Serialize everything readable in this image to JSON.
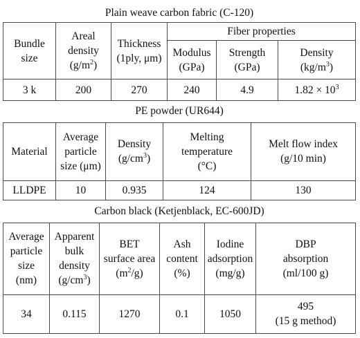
{
  "fabric": {
    "title": "Plain weave carbon fabric (C-120)",
    "headers": {
      "bundle": [
        "Bundle",
        "size"
      ],
      "areal": [
        "Areal",
        "density",
        "(g/m",
        "2",
        ")"
      ],
      "thickness": [
        "Thickness",
        "(1ply, μm)"
      ],
      "fiber_group": "Fiber properties",
      "modulus": [
        "Modulus",
        "(GPa)"
      ],
      "strength": [
        "Strength",
        "(GPa)"
      ],
      "density": [
        "Density",
        "(kg/m",
        "3",
        ")"
      ]
    },
    "row": {
      "bundle": "3 k",
      "areal": "200",
      "thickness": "270",
      "modulus": "240",
      "strength": "4.9",
      "density": "1.82 × 10",
      "density_exp": "3"
    }
  },
  "powder": {
    "title": "PE powder (UR644)",
    "headers": {
      "material": "Material",
      "particle": [
        "Average",
        "particle",
        "size (μm)"
      ],
      "density": [
        "Density",
        "(g/cm",
        "3",
        ")"
      ],
      "melting": [
        "Melting",
        "temperature",
        "(°C)"
      ],
      "mfi": [
        "Melt flow index",
        "(g/10 min)"
      ]
    },
    "row": {
      "material": "LLDPE",
      "particle": "10",
      "density": "0.935",
      "melting": "124",
      "mfi": "130"
    }
  },
  "carbon": {
    "title": "Carbon black (Ketjenblack, EC-600JD)",
    "headers": {
      "particle": [
        "Average",
        "particle",
        "size",
        "(nm)"
      ],
      "bulk": [
        "Apparent",
        "bulk",
        "density",
        "(g/cm",
        "3",
        ")"
      ],
      "bet": [
        "BET",
        "surface area",
        "(m",
        "2",
        "/g)"
      ],
      "ash": [
        "Ash",
        "content",
        "(%)"
      ],
      "iodine": [
        "Iodine",
        "adsorption",
        "(mg/g)"
      ],
      "dbp": [
        "DBP",
        "absorption",
        "(ml/100 g)"
      ]
    },
    "row": {
      "particle": "34",
      "bulk": "0.115",
      "bet": "1270",
      "ash": "0.1",
      "iodine": "1050",
      "dbp": [
        "495",
        "(15 g method)"
      ]
    }
  }
}
